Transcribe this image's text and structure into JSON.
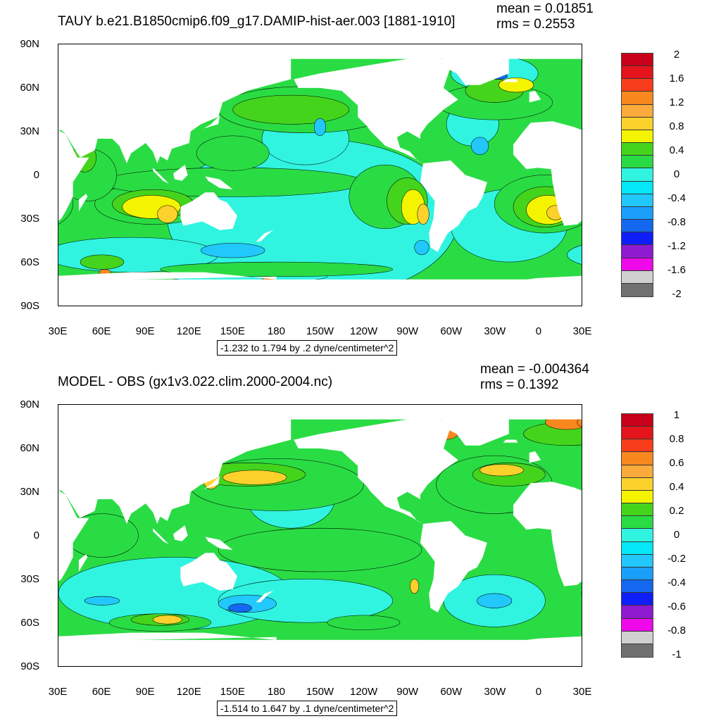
{
  "panels": [
    {
      "title": "TAUY b.e21.B1850cmip6.f09_g17.DAMIP-hist-aer.003 [1881-1910]",
      "mean": "mean = 0.01851",
      "rms": "rms = 0.2553",
      "info": "-1.232 to 1.794 by .2 dyne/centimeter^2",
      "legend_labels": [
        "2",
        "1.6",
        "1.2",
        "0.8",
        "0.4",
        "0",
        "-0.4",
        "-0.8",
        "-1.2",
        "-1.6",
        "-2"
      ],
      "legend_colors": [
        "#c8001a",
        "#e5141c",
        "#f73d1c",
        "#f7881e",
        "#fbab3c",
        "#fdd12c",
        "#f4f400",
        "#44d41c",
        "#2adc44",
        "#30f4e0",
        "#02e8f6",
        "#22c8fc",
        "#1a9efc",
        "#1468f0",
        "#0e1ef8",
        "#8e1ad0",
        "#ee08ea",
        "#d0d0d0",
        "#707070"
      ],
      "levels": [
        {
          "color": "#30f4e0",
          "blobs": [
            {
              "lon": 205,
              "lat": -30,
              "rx": 100,
              "ry": 55
            },
            {
              "lon": 340,
              "lat": -35,
              "rx": 40,
              "ry": 25
            },
            {
              "lon": 80,
              "lat": -55,
              "rx": 60,
              "ry": 12
            },
            {
              "lon": 330,
              "lat": 70,
              "rx": 30,
              "ry": 12
            },
            {
              "lon": 200,
              "lat": 25,
              "rx": 30,
              "ry": 18
            },
            {
              "lon": 315,
              "lat": 35,
              "rx": 18,
              "ry": 15
            },
            {
              "lon": 160,
              "lat": -70,
              "rx": 55,
              "ry": 4
            }
          ]
        },
        {
          "color": "#2adc44",
          "blobs": [
            {
              "lon": 200,
              "lat": 45,
              "rx": 60,
              "ry": 16
            },
            {
              "lon": 330,
              "lat": 50,
              "rx": 40,
              "ry": 12
            },
            {
              "lon": 95,
              "lat": -20,
              "rx": 40,
              "ry": 14
            },
            {
              "lon": 150,
              "lat": -5,
              "rx": 90,
              "ry": 10
            },
            {
              "lon": 255,
              "lat": -15,
              "rx": 25,
              "ry": 22
            },
            {
              "lon": 5,
              "lat": -20,
              "rx": 35,
              "ry": 20
            },
            {
              "lon": 50,
              "lat": 0,
              "rx": 20,
              "ry": 18
            },
            {
              "lon": 180,
              "lat": -65,
              "rx": 80,
              "ry": 5
            },
            {
              "lon": 150,
              "lat": 15,
              "rx": 25,
              "ry": 12
            }
          ]
        },
        {
          "color": "#44d41c",
          "blobs": [
            {
              "lon": 190,
              "lat": 45,
              "rx": 40,
              "ry": 10
            },
            {
              "lon": 330,
              "lat": 58,
              "rx": 20,
              "ry": 8
            },
            {
              "lon": 95,
              "lat": -20,
              "rx": 28,
              "ry": 10
            },
            {
              "lon": 270,
              "lat": -18,
              "rx": 14,
              "ry": 16
            },
            {
              "lon": 5,
              "lat": -22,
              "rx": 22,
              "ry": 14
            },
            {
              "lon": 48,
              "lat": 12,
              "rx": 8,
              "ry": 10
            },
            {
              "lon": 60,
              "lat": -60,
              "rx": 15,
              "ry": 5
            }
          ]
        },
        {
          "color": "#f4f400",
          "blobs": [
            {
              "lon": 94,
              "lat": -22,
              "rx": 20,
              "ry": 8
            },
            {
              "lon": 274,
              "lat": -22,
              "rx": 8,
              "ry": 12
            },
            {
              "lon": 7,
              "lat": -24,
              "rx": 15,
              "ry": 10
            },
            {
              "lon": 345,
              "lat": 62,
              "rx": 12,
              "ry": 5
            }
          ]
        },
        {
          "color": "#fdd12c",
          "blobs": [
            {
              "lon": 105,
              "lat": -27,
              "rx": 7,
              "ry": 6
            },
            {
              "lon": 281,
              "lat": -27,
              "rx": 4,
              "ry": 7
            },
            {
              "lon": 12,
              "lat": -26,
              "rx": 6,
              "ry": 5
            }
          ]
        },
        {
          "color": "#f7881e",
          "blobs": [
            {
              "lon": 175,
              "lat": -73,
              "rx": 5,
              "ry": 3
            },
            {
              "lon": 62,
              "lat": -67,
              "rx": 4,
              "ry": 2
            }
          ]
        },
        {
          "color": "#c8001a",
          "blobs": [
            {
              "lon": 175,
              "lat": -74,
              "rx": 2,
              "ry": 1.5
            }
          ]
        },
        {
          "color": "#22c8fc",
          "blobs": [
            {
              "lon": 150,
              "lat": -52,
              "rx": 22,
              "ry": 5
            },
            {
              "lon": 280,
              "lat": -50,
              "rx": 5,
              "ry": 5
            },
            {
              "lon": 210,
              "lat": 33,
              "rx": 4,
              "ry": 6
            },
            {
              "lon": 320,
              "lat": 20,
              "rx": 6,
              "ry": 6
            }
          ]
        },
        {
          "color": "#1468f0",
          "blobs": [
            {
              "lon": 333,
              "lat": 68,
              "rx": 6,
              "ry": 2
            }
          ]
        }
      ],
      "ylabels": [
        "90N",
        "60N",
        "30N",
        "0",
        "30S",
        "60S",
        "90S"
      ],
      "xlabels": [
        "30E",
        "60E",
        "90E",
        "120E",
        "150E",
        "180",
        "150W",
        "120W",
        "90W",
        "60W",
        "30W",
        "0",
        "30E"
      ]
    },
    {
      "title": "MODEL - OBS (gx1v3.022.clim.2000-2004.nc)",
      "mean": "mean = -0.004364",
      "rms": "rms = 0.1392",
      "info": "-1.514 to 1.647 by .1 dyne/centimeter^2",
      "legend_labels": [
        "1",
        "0.8",
        "0.6",
        "0.4",
        "0.2",
        "0",
        "-0.2",
        "-0.4",
        "-0.6",
        "-0.8",
        "-1"
      ],
      "legend_colors": [
        "#c8001a",
        "#e5141c",
        "#f73d1c",
        "#f7881e",
        "#fbab3c",
        "#fdd12c",
        "#f4f400",
        "#44d41c",
        "#2adc44",
        "#30f4e0",
        "#02e8f6",
        "#22c8fc",
        "#1a9efc",
        "#1468f0",
        "#0e1ef8",
        "#8e1ad0",
        "#ee08ea",
        "#d0d0d0",
        "#707070"
      ],
      "levels": [
        {
          "color": "#30f4e0",
          "blobs": [
            {
              "lon": 110,
              "lat": -40,
              "rx": 80,
              "ry": 25
            },
            {
              "lon": 200,
              "lat": -45,
              "rx": 60,
              "ry": 15
            },
            {
              "lon": 330,
              "lat": -45,
              "rx": 35,
              "ry": 18
            },
            {
              "lon": 190,
              "lat": 25,
              "rx": 30,
              "ry": 20
            }
          ]
        },
        {
          "color": "#22c8fc",
          "blobs": [
            {
              "lon": 160,
              "lat": -47,
              "rx": 20,
              "ry": 6
            },
            {
              "lon": 60,
              "lat": -45,
              "rx": 12,
              "ry": 3
            },
            {
              "lon": 330,
              "lat": -45,
              "rx": 12,
              "ry": 5
            }
          ]
        },
        {
          "color": "#2adc44",
          "blobs": [
            {
              "lon": 180,
              "lat": 35,
              "rx": 60,
              "ry": 18
            },
            {
              "lon": 330,
              "lat": 35,
              "rx": 40,
              "ry": 20
            },
            {
              "lon": 210,
              "lat": -10,
              "rx": 70,
              "ry": 15
            },
            {
              "lon": 100,
              "lat": -60,
              "rx": 35,
              "ry": 6
            },
            {
              "lon": 240,
              "lat": -60,
              "rx": 25,
              "ry": 5
            },
            {
              "lon": 60,
              "lat": 0,
              "rx": 25,
              "ry": 15
            }
          ]
        },
        {
          "color": "#44d41c",
          "blobs": [
            {
              "lon": 160,
              "lat": 42,
              "rx": 40,
              "ry": 8
            },
            {
              "lon": 340,
              "lat": 42,
              "rx": 25,
              "ry": 8
            },
            {
              "lon": 100,
              "lat": -58,
              "rx": 20,
              "ry": 4
            },
            {
              "lon": 20,
              "lat": 70,
              "rx": 30,
              "ry": 8
            }
          ]
        },
        {
          "color": "#fdd12c",
          "blobs": [
            {
              "lon": 165,
              "lat": 40,
              "rx": 22,
              "ry": 5
            },
            {
              "lon": 335,
              "lat": 45,
              "rx": 15,
              "ry": 4
            },
            {
              "lon": 105,
              "lat": -58,
              "rx": 10,
              "ry": 3
            },
            {
              "lon": 275,
              "lat": -35,
              "rx": 3,
              "ry": 5
            },
            {
              "lon": 135,
              "lat": 37,
              "rx": 5,
              "ry": 5
            }
          ]
        },
        {
          "color": "#f7881e",
          "blobs": [
            {
              "lon": 20,
              "lat": 78,
              "rx": 15,
              "ry": 5
            },
            {
              "lon": 35,
              "lat": 78,
              "rx": 8,
              "ry": 4
            },
            {
              "lon": 295,
              "lat": 70,
              "rx": 10,
              "ry": 4
            }
          ]
        },
        {
          "color": "#c8001a",
          "blobs": [
            {
              "lon": 318,
              "lat": 70,
              "rx": 5,
              "ry": 3
            }
          ]
        },
        {
          "color": "#1468f0",
          "blobs": [
            {
              "lon": 155,
              "lat": -50,
              "rx": 8,
              "ry": 3
            }
          ]
        }
      ],
      "ylabels": [
        "90N",
        "60N",
        "30N",
        "0",
        "30S",
        "60S",
        "90S"
      ],
      "xlabels": [
        "30E",
        "60E",
        "90E",
        "120E",
        "150E",
        "180",
        "150W",
        "120W",
        "90W",
        "60W",
        "30W",
        "0",
        "30E"
      ]
    }
  ]
}
